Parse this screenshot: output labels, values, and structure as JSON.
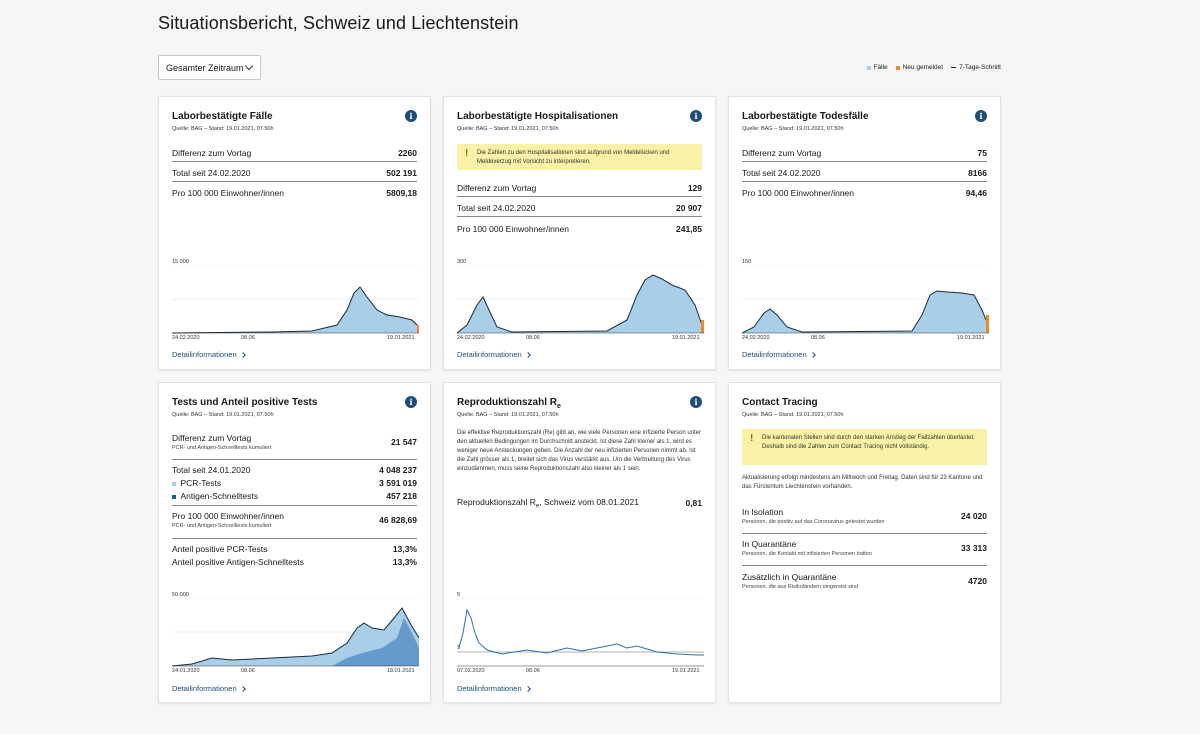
{
  "page": {
    "title": "Situationsbericht, Schweiz und Liechtenstein",
    "period_select": "Gesamter Zeitraum",
    "legend": [
      {
        "label": "Fälle",
        "color": "#a9cfe8"
      },
      {
        "label": "Neu gemeldet",
        "color": "#f08a24"
      },
      {
        "label": "7-Tage-Schnitt",
        "color": "#222222"
      }
    ],
    "detail_link": "Detailinformationen"
  },
  "cards": {
    "faelle": {
      "title": "Laborbestätigte Fälle",
      "source": "Quelle: BAG – Stand: 19.01.2021, 07.50h",
      "rows": [
        {
          "label": "Differenz zum Vortag",
          "value": "2260"
        },
        {
          "label": "Total seit 24.02.2020",
          "value": "502 191"
        },
        {
          "label": "Pro 100 000 Einwohner/innen",
          "value": "5809,18"
        }
      ],
      "chart": {
        "ymax_label": "15 000",
        "x_labels": [
          "24.02.2020",
          "08.06",
          "19.01.2021"
        ]
      }
    },
    "hosp": {
      "title": "Laborbestätigte Hospitalisationen",
      "source": "Quelle: BAG – Stand: 19.01.2021, 07.50h",
      "warning": "Die Zahlen zu den Hospitalisationen sind aufgrund von Meldelücken und Meldeverzug mit Vorsicht zu interpretieren.",
      "rows": [
        {
          "label": "Differenz zum Vortag",
          "value": "129"
        },
        {
          "label": "Total seit 24.02.2020",
          "value": "20 907"
        },
        {
          "label": "Pro 100 000 Einwohner/innen",
          "value": "241,85"
        }
      ],
      "chart": {
        "ymax_label": "300",
        "x_labels": [
          "24.02.2020",
          "08.06",
          "19.01.2021"
        ]
      }
    },
    "tod": {
      "title": "Laborbestätigte Todesfälle",
      "source": "Quelle: BAG – Stand: 19.01.2021, 07.50h",
      "rows": [
        {
          "label": "Differenz zum Vortag",
          "value": "75"
        },
        {
          "label": "Total seit 24.02.2020",
          "value": "8166"
        },
        {
          "label": "Pro 100 000 Einwohner/innen",
          "value": "94,46"
        }
      ],
      "chart": {
        "ymax_label": "150",
        "x_labels": [
          "24.02.2020",
          "08.06",
          "19.01.2021"
        ]
      }
    },
    "tests": {
      "title": "Tests und Anteil positive Tests",
      "source": "Quelle: BAG – Stand: 19.01.2021, 07.50h",
      "diff_label": "Differenz zum Vortag",
      "diff_sub": "PCR- und Antigen-Schnelltests kumuliert",
      "diff_value": "21 547",
      "total_label": "Total seit 24.01.2020",
      "total_value": "4 048 237",
      "pcr_label": "PCR-Tests",
      "pcr_value": "3 591 019",
      "antigen_label": "Antigen-Schnelltests",
      "antigen_value": "457 218",
      "per100k_label": "Pro 100 000 Einwohner/innen",
      "per100k_sub": "PCR- und Antigen-Schnelltests kumuliert",
      "per100k_value": "46 828,69",
      "pos_pcr_label": "Anteil positive PCR-Tests",
      "pos_pcr_value": "13,3%",
      "pos_ag_label": "Anteil positive Antigen-Schnelltests",
      "pos_ag_value": "13,3%",
      "chart": {
        "ymax_label": "50 000",
        "x_labels": [
          "24.01.2020",
          "08.06",
          "18.01.2021"
        ]
      }
    },
    "repro": {
      "title": "Reproduktionszahl R",
      "title_sub": "e",
      "source": "Quelle: BAG – Stand: 19.01.2021, 07.50h",
      "text": "Die effektive Reproduktionszahl (Re) gibt an, wie viele Personen eine infizierte Person unter den aktuellen Bedingungen im Durchschnitt ansteckt. Ist diese Zahl kleiner als 1, wird es weniger neue Ansteckungen geben. Die Anzahl der neu infizierten Personen nimmt ab. Ist die Zahl grösser als 1, breitet sich das Virus verstärkt aus. Um die Verbreitung des Virus einzudämmen, muss seine Reproduktionszahl also kleiner als 1 sein.",
      "row_label": "Reproduktionszahl R",
      "row_label_sub": "e",
      "row_label_rest": ", Schweiz vom 08.01.2021",
      "row_value": "0,81",
      "chart": {
        "ymax_label": "5",
        "ymin_label": "1",
        "x_labels": [
          "07.02.2020",
          "08.06",
          "19.01.2021"
        ]
      }
    },
    "tracing": {
      "title": "Contact Tracing",
      "source": "Quelle: BAG – Stand: 19.01.2021, 07.50h",
      "warning": "Die kantonalen Stellen sind durch den starken Anstieg der Fallzahlen überlastet. Deshalb sind die Zahlen zum Contact Tracing nicht vollständig.",
      "note": "Aktualisierung erfolgt mindestens am Mittwoch und Freitag. Daten sind für 23 Kantone und das Fürstentum Liechtenstein vorhanden.",
      "rows": [
        {
          "label": "In Isolation",
          "sub": "Personen, die positiv auf das Coronavirus getestet wurden",
          "value": "24 020"
        },
        {
          "label": "In Quarantäne",
          "sub": "Personen, die Kontakt mit infizierten Personen hatten",
          "value": "33 313"
        },
        {
          "label": "Zusätzlich in Quarantäne",
          "sub": "Personen, die aus Risikoländern eingereist sind",
          "value": "4720"
        }
      ]
    }
  }
}
